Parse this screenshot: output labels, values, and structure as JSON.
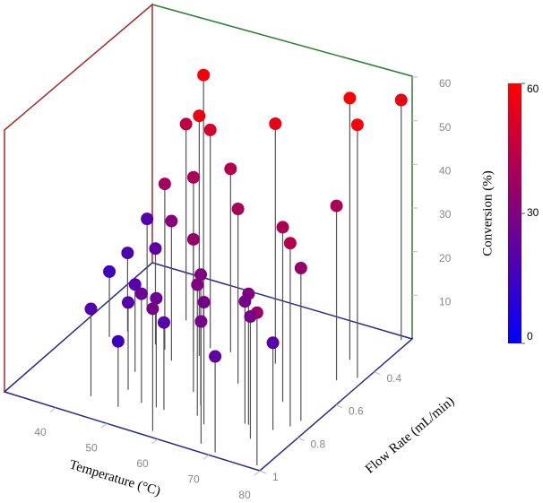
{
  "chart_data": {
    "type": "scatter3d",
    "xlabel": "Temperature (°C)",
    "ylabel": "Flow Rate (mL/min)",
    "colorbar_label": "Conversion (%)",
    "x": [
      48.1,
      52.1,
      44.3,
      52.4,
      64.4,
      74.5,
      78.6,
      78.6,
      56,
      50.6,
      46.1,
      76,
      62.3,
      36.3,
      48.9,
      71.8,
      57.3,
      77,
      37.7,
      43.9,
      77.6,
      36,
      60.6,
      45.5,
      61.8,
      51.6,
      70.7,
      47.5,
      54.5,
      70,
      64.2,
      43.2,
      57.9,
      78.7,
      73.3,
      56,
      67,
      75.1,
      48.9,
      70.5
    ],
    "y": [
      0.44,
      0.57,
      0.43,
      0.52,
      0.5,
      0.38,
      0.22,
      0.45,
      0.51,
      0.56,
      0.59,
      0.49,
      0.64,
      0.42,
      0.63,
      0.66,
      0.74,
      0.76,
      0.56,
      0.58,
      0.72,
      0.61,
      0.79,
      0.73,
      0.84,
      0.86,
      0.81,
      0.82,
      0.86,
      0.81,
      0.87,
      0.9,
      0.97,
      0.98,
      0.87,
      0.86,
      0.96,
      0.8,
      0.91,
      0.98
    ],
    "z": [
      58,
      55,
      45,
      50,
      55,
      60,
      55,
      58,
      42,
      40,
      38,
      40,
      40,
      20,
      32,
      40,
      35,
      42,
      18,
      22,
      35,
      15,
      30,
      20,
      30,
      25,
      30,
      20,
      25,
      28,
      28,
      20,
      28,
      35,
      28,
      20,
      28,
      20,
      15,
      22
    ],
    "xlim": [
      30,
      80
    ],
    "xticks": [
      40,
      50,
      60,
      70,
      80
    ],
    "ylim": [
      0.2,
      1
    ],
    "yticks": [
      0.4,
      0.6,
      0.8,
      1
    ],
    "zlim": [
      0,
      60
    ],
    "zticks": [
      10,
      20,
      30,
      40,
      50,
      60
    ],
    "clim": [
      0,
      60
    ],
    "cticks": [
      0,
      30,
      60
    ],
    "colorscale": [
      "#0000ff",
      "#ff0000"
    ],
    "stem_color": "#555555"
  }
}
